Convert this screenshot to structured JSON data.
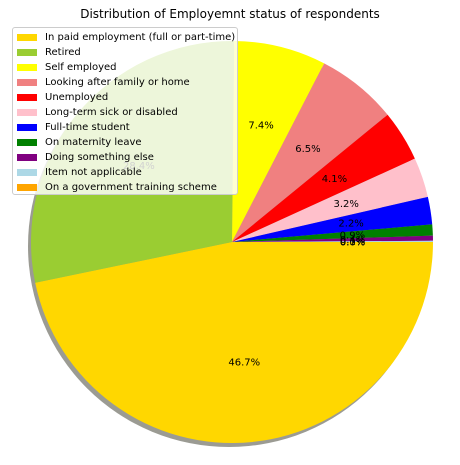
{
  "chart_data": {
    "type": "pie",
    "title": "Distribution of Employemnt status of respondents",
    "slices": [
      {
        "label": "In paid employment (full or part-time)",
        "value": 46.7,
        "display": "46.7%",
        "color": "#ffd700"
      },
      {
        "label": "Retired",
        "value": 28.4,
        "display": "28.4%",
        "color": "#9acd32"
      },
      {
        "label": "Self employed",
        "value": 7.4,
        "display": "7.4%",
        "color": "#ffff00"
      },
      {
        "label": "Looking after family or home",
        "value": 6.5,
        "display": "6.5%",
        "color": "#f08080"
      },
      {
        "label": "Unemployed",
        "value": 4.1,
        "display": "4.1%",
        "color": "#ff0000"
      },
      {
        "label": "Long-term sick or disabled",
        "value": 3.2,
        "display": "3.2%",
        "color": "#ffc0cb"
      },
      {
        "label": "Full-time student",
        "value": 2.2,
        "display": "2.2%",
        "color": "#0000ff"
      },
      {
        "label": "On maternity leave",
        "value": 0.9,
        "display": "0.9%",
        "color": "#008000"
      },
      {
        "label": "Doing something else",
        "value": 0.4,
        "display": "0.4%",
        "color": "#800080"
      },
      {
        "label": "Item not applicable",
        "value": 0.1,
        "display": "0.1%",
        "color": "#add8e6"
      },
      {
        "label": "On a government training scheme",
        "value": 0.0,
        "display": "0.0%",
        "color": "#ffa500"
      }
    ],
    "start_angle_deg": 0,
    "direction": "clockwise",
    "shadow": true,
    "legend_position": "upper-left"
  }
}
